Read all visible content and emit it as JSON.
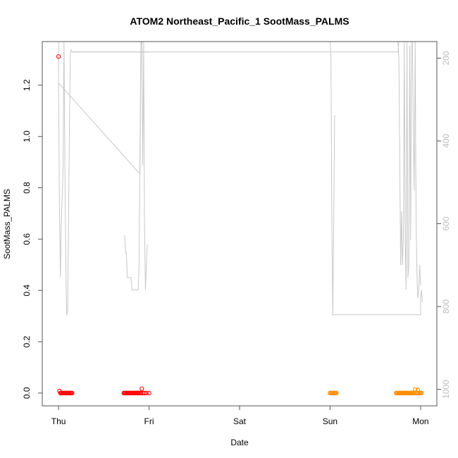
{
  "chart_data": {
    "type": "scatter",
    "title": "ATOM2 Northeast_Pacific_1 SootMass_PALMS",
    "xlabel": "Date",
    "ylabel": "SootMass_PALMS",
    "x_ticks": [
      "Thu",
      "Fri",
      "Sat",
      "Sun",
      "Mon"
    ],
    "x_range_days": [
      -0.18,
      4.18
    ],
    "y_ticks": [
      "0.0",
      "0.2",
      "0.4",
      "0.6",
      "0.8",
      "1.0",
      "1.2"
    ],
    "ylim": [
      -0.05,
      1.37
    ],
    "y2_ticks": [
      "200",
      "400",
      "600",
      "800",
      "1000"
    ],
    "y2lim": [
      1040,
      160
    ],
    "y2_reversed": true,
    "colors": {
      "red": "#ff0000",
      "orange": "#ff8c00",
      "pressure": "#c8c8c8",
      "axes": "#555555"
    },
    "series": [
      {
        "color": "red",
        "points": [
          {
            "x": 0.0,
            "y": 1.312
          },
          {
            "x": 0.01,
            "y": 0.008
          },
          {
            "x": 0.02,
            "y": 0.0
          },
          {
            "x": 0.03,
            "y": 0.0
          },
          {
            "x": 0.04,
            "y": 0.0
          },
          {
            "x": 0.05,
            "y": 0.0
          },
          {
            "x": 0.06,
            "y": 0.0
          },
          {
            "x": 0.07,
            "y": 0.0
          },
          {
            "x": 0.08,
            "y": 0.0
          },
          {
            "x": 0.09,
            "y": 0.0
          },
          {
            "x": 0.1,
            "y": 0.0
          },
          {
            "x": 0.11,
            "y": 0.0
          },
          {
            "x": 0.12,
            "y": 0.0
          },
          {
            "x": 0.13,
            "y": 0.0
          },
          {
            "x": 0.14,
            "y": 0.0
          },
          {
            "x": 0.15,
            "y": 0.0
          },
          {
            "x": 0.72,
            "y": 0.0
          },
          {
            "x": 0.73,
            "y": 0.0
          },
          {
            "x": 0.74,
            "y": 0.0
          },
          {
            "x": 0.75,
            "y": 0.0
          },
          {
            "x": 0.76,
            "y": 0.0
          },
          {
            "x": 0.77,
            "y": 0.0
          },
          {
            "x": 0.78,
            "y": 0.0
          },
          {
            "x": 0.79,
            "y": 0.0
          },
          {
            "x": 0.8,
            "y": 0.0
          },
          {
            "x": 0.81,
            "y": 0.0
          },
          {
            "x": 0.82,
            "y": 0.0
          },
          {
            "x": 0.83,
            "y": 0.0
          },
          {
            "x": 0.84,
            "y": 0.0
          },
          {
            "x": 0.85,
            "y": 0.0
          },
          {
            "x": 0.86,
            "y": 0.0
          },
          {
            "x": 0.87,
            "y": 0.0
          },
          {
            "x": 0.88,
            "y": 0.0
          },
          {
            "x": 0.89,
            "y": 0.0
          },
          {
            "x": 0.9,
            "y": 0.0
          },
          {
            "x": 0.91,
            "y": 0.0
          },
          {
            "x": 0.92,
            "y": 0.017
          },
          {
            "x": 0.93,
            "y": 0.0
          },
          {
            "x": 0.95,
            "y": 0.0
          },
          {
            "x": 0.97,
            "y": 0.0
          },
          {
            "x": 1.0,
            "y": 0.0
          }
        ]
      },
      {
        "color": "orange",
        "points": [
          {
            "x": 3.0,
            "y": 0.0
          },
          {
            "x": 3.01,
            "y": 0.0
          },
          {
            "x": 3.02,
            "y": 0.0
          },
          {
            "x": 3.03,
            "y": 0.0
          },
          {
            "x": 3.04,
            "y": 0.0
          },
          {
            "x": 3.05,
            "y": 0.0
          },
          {
            "x": 3.06,
            "y": 0.0
          },
          {
            "x": 3.07,
            "y": 0.0
          },
          {
            "x": 3.73,
            "y": 0.0
          },
          {
            "x": 3.74,
            "y": 0.0
          },
          {
            "x": 3.75,
            "y": 0.0
          },
          {
            "x": 3.76,
            "y": 0.0
          },
          {
            "x": 3.77,
            "y": 0.0
          },
          {
            "x": 3.78,
            "y": 0.0
          },
          {
            "x": 3.79,
            "y": 0.0
          },
          {
            "x": 3.8,
            "y": 0.0
          },
          {
            "x": 3.81,
            "y": 0.0
          },
          {
            "x": 3.82,
            "y": 0.0
          },
          {
            "x": 3.83,
            "y": 0.0
          },
          {
            "x": 3.84,
            "y": 0.0
          },
          {
            "x": 3.85,
            "y": 0.0
          },
          {
            "x": 3.86,
            "y": 0.0
          },
          {
            "x": 3.87,
            "y": 0.0
          },
          {
            "x": 3.88,
            "y": 0.0
          },
          {
            "x": 3.89,
            "y": 0.0
          },
          {
            "x": 3.9,
            "y": 0.0
          },
          {
            "x": 3.91,
            "y": 0.0
          },
          {
            "x": 3.92,
            "y": 0.0
          },
          {
            "x": 3.93,
            "y": 0.0
          },
          {
            "x": 3.94,
            "y": 0.014
          },
          {
            "x": 3.95,
            "y": 0.0
          },
          {
            "x": 3.96,
            "y": 0.0
          },
          {
            "x": 3.97,
            "y": 0.012
          },
          {
            "x": 3.98,
            "y": 0.0
          },
          {
            "x": 3.99,
            "y": 0.0
          },
          {
            "x": 4.0,
            "y": 0.0
          },
          {
            "x": 4.01,
            "y": 0.0
          }
        ]
      }
    ],
    "pressure_line": {
      "color": "pressure",
      "axis": "right",
      "segments": [
        [
          [
            0.0,
            160
          ],
          [
            0.0,
            260
          ],
          [
            0.01,
            560
          ],
          [
            0.02,
            730
          ],
          [
            0.03,
            600
          ],
          [
            0.05,
            470
          ],
          [
            0.06,
            160
          ],
          [
            0.07,
            460
          ],
          [
            0.08,
            700
          ],
          [
            0.09,
            820
          ],
          [
            0.1,
            810
          ],
          [
            0.11,
            600
          ],
          [
            0.12,
            380
          ],
          [
            0.13,
            190
          ],
          [
            0.14,
            180
          ],
          [
            0.15,
            185
          ],
          [
            0.16,
            185
          ],
          [
            0.2,
            185
          ],
          [
            1.0,
            185
          ]
        ],
        [
          [
            0.0,
            260
          ],
          [
            0.9,
            480
          ],
          [
            0.91,
            170
          ],
          [
            0.92,
            160
          ],
          [
            0.93,
            460
          ],
          [
            0.94,
            160
          ],
          [
            0.95,
            600
          ],
          [
            0.96,
            760
          ],
          [
            0.97,
            700
          ],
          [
            0.98,
            650
          ]
        ],
        [
          [
            0.73,
            628
          ],
          [
            0.74,
            670
          ],
          [
            0.75,
            670
          ],
          [
            0.76,
            730
          ],
          [
            0.8,
            730
          ],
          [
            0.81,
            760
          ],
          [
            0.88,
            760
          ],
          [
            0.89,
            700
          ],
          [
            0.9,
            420
          ],
          [
            0.91,
            160
          ]
        ],
        [
          [
            0.15,
            185
          ],
          [
            2.95,
            185
          ],
          [
            3.75,
            185
          ],
          [
            3.76,
            160
          ]
        ],
        [
          [
            3.0,
            160
          ],
          [
            3.01,
            200
          ],
          [
            3.02,
            600
          ],
          [
            3.03,
            820
          ],
          [
            3.04,
            600
          ],
          [
            3.05,
            340
          ],
          [
            3.06,
            340
          ]
        ],
        [
          [
            3.02,
            820
          ],
          [
            4.0,
            820
          ],
          [
            4.0,
            780
          ],
          [
            4.01,
            760
          ],
          [
            4.02,
            790
          ]
        ],
        [
          [
            3.75,
            160
          ],
          [
            3.76,
            200
          ],
          [
            3.78,
            700
          ],
          [
            3.79,
            570
          ],
          [
            3.8,
            700
          ],
          [
            3.81,
            640
          ],
          [
            3.82,
            160
          ],
          [
            3.83,
            620
          ],
          [
            3.84,
            760
          ],
          [
            3.85,
            160
          ],
          [
            3.86,
            730
          ],
          [
            3.87,
            700
          ],
          [
            3.88,
            170
          ],
          [
            3.89,
            640
          ],
          [
            3.9,
            170
          ],
          [
            3.91,
            160
          ],
          [
            3.92,
            380
          ],
          [
            3.93,
            520
          ],
          [
            3.94,
            160
          ],
          [
            3.95,
            580
          ],
          [
            3.96,
            720
          ],
          [
            3.97,
            780
          ],
          [
            3.98,
            760
          ],
          [
            3.99,
            700
          ],
          [
            4.0,
            750
          ]
        ]
      ]
    }
  }
}
